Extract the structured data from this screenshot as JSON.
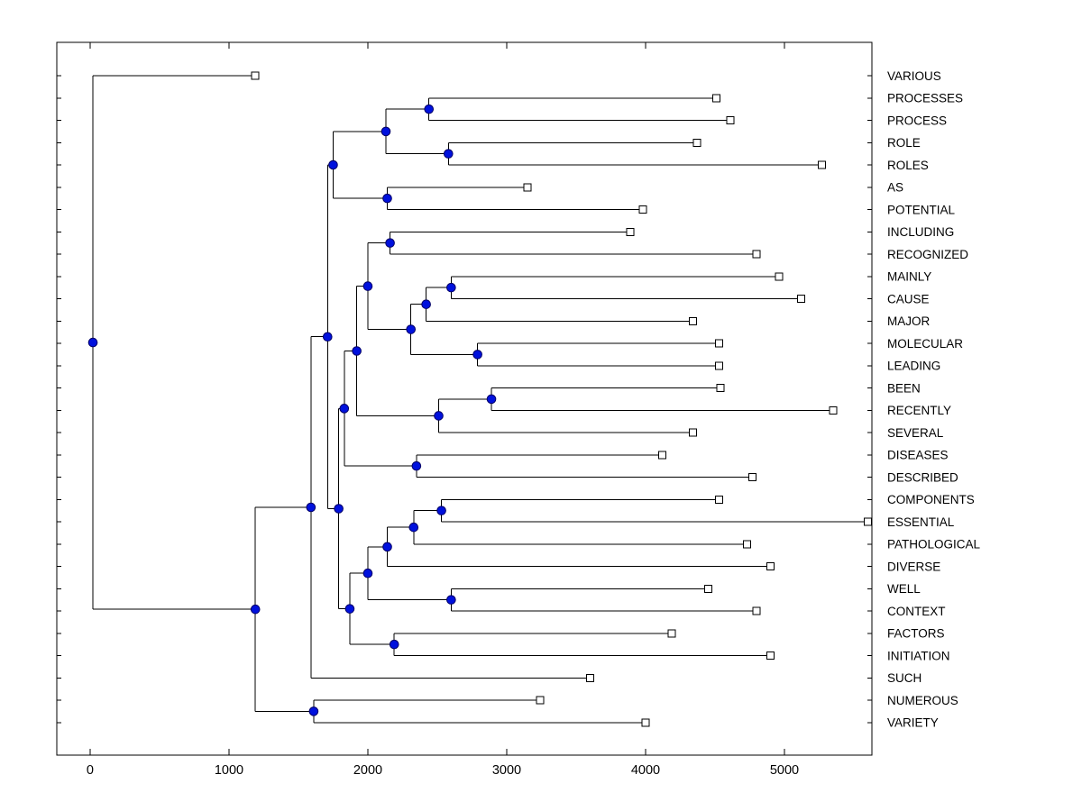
{
  "figure": {
    "background_color": "#ffffff",
    "plot_border_color": "#000000"
  },
  "chart_data": {
    "type": "dendrogram",
    "orientation": "left-to-right",
    "title": "",
    "xlabel": "",
    "ylabel": "",
    "x_ticks": [
      0,
      1000,
      2000,
      3000,
      4000,
      5000
    ],
    "x_tick_labels": [
      "0",
      "1000",
      "2000",
      "3000",
      "4000",
      "5000"
    ],
    "xlim": [
      -240,
      5630
    ],
    "grid": false,
    "legend": false,
    "styles": {
      "line_color": "#000000",
      "node_marker_fill": "#0011dd",
      "node_marker_edge": "#000066",
      "leaf_marker_fill": "#ffffff",
      "leaf_marker_edge": "#000000",
      "label_color": "#000000"
    },
    "leaf_labels": [
      "VARIOUS",
      "PROCESSES",
      "PROCESS",
      "ROLE",
      "ROLES",
      "AS",
      "POTENTIAL",
      "INCLUDING",
      "RECOGNIZED",
      "MAINLY",
      "CAUSE",
      "MAJOR",
      "MOLECULAR",
      "LEADING",
      "BEEN",
      "RECENTLY",
      "SEVERAL",
      "DISEASES",
      "DESCRIBED",
      "COMPONENTS",
      "ESSENTIAL",
      "PATHOLOGICAL",
      "DIVERSE",
      "WELL",
      "CONTEXT",
      "FACTORS",
      "INITIATION",
      "SUCH",
      "NUMEROUS",
      "VARIETY"
    ],
    "tree": {
      "x": 20,
      "children": [
        {
          "label": "VARIOUS",
          "x": 1190
        },
        {
          "x": 1190,
          "children": [
            {
              "x": 1590,
              "children": [
                {
                  "x": 1710,
                  "children": [
                    {
                      "x": 1750,
                      "children": [
                        {
                          "x": 2130,
                          "children": [
                            {
                              "x": 2440,
                              "children": [
                                {
                                  "label": "PROCESSES",
                                  "x": 4510
                                },
                                {
                                  "label": "PROCESS",
                                  "x": 4610
                                }
                              ]
                            },
                            {
                              "x": 2580,
                              "children": [
                                {
                                  "label": "ROLE",
                                  "x": 4370
                                },
                                {
                                  "label": "ROLES",
                                  "x": 5270
                                }
                              ]
                            }
                          ]
                        },
                        {
                          "x": 2140,
                          "children": [
                            {
                              "label": "AS",
                              "x": 3150
                            },
                            {
                              "label": "POTENTIAL",
                              "x": 3980
                            }
                          ]
                        }
                      ]
                    },
                    {
                      "x": 1790,
                      "children": [
                        {
                          "x": 1830,
                          "children": [
                            {
                              "x": 1920,
                              "children": [
                                {
                                  "x": 2000,
                                  "children": [
                                    {
                                      "x": 2160,
                                      "children": [
                                        {
                                          "label": "INCLUDING",
                                          "x": 3890
                                        },
                                        {
                                          "label": "RECOGNIZED",
                                          "x": 4800
                                        }
                                      ]
                                    },
                                    {
                                      "x": 2310,
                                      "children": [
                                        {
                                          "x": 2420,
                                          "children": [
                                            {
                                              "x": 2600,
                                              "children": [
                                                {
                                                  "label": "MAINLY",
                                                  "x": 4960
                                                },
                                                {
                                                  "label": "CAUSE",
                                                  "x": 5120
                                                }
                                              ]
                                            },
                                            {
                                              "label": "MAJOR",
                                              "x": 4340
                                            }
                                          ]
                                        },
                                        {
                                          "x": 2790,
                                          "children": [
                                            {
                                              "label": "MOLECULAR",
                                              "x": 4530
                                            },
                                            {
                                              "label": "LEADING",
                                              "x": 4530
                                            }
                                          ]
                                        }
                                      ]
                                    }
                                  ]
                                },
                                {
                                  "x": 2510,
                                  "children": [
                                    {
                                      "x": 2890,
                                      "children": [
                                        {
                                          "label": "BEEN",
                                          "x": 4540
                                        },
                                        {
                                          "label": "RECENTLY",
                                          "x": 5350
                                        }
                                      ]
                                    },
                                    {
                                      "label": "SEVERAL",
                                      "x": 4340
                                    }
                                  ]
                                }
                              ]
                            },
                            {
                              "x": 2350,
                              "children": [
                                {
                                  "label": "DISEASES",
                                  "x": 4120
                                },
                                {
                                  "label": "DESCRIBED",
                                  "x": 4770
                                }
                              ]
                            }
                          ]
                        },
                        {
                          "x": 1870,
                          "children": [
                            {
                              "x": 2000,
                              "children": [
                                {
                                  "x": 2140,
                                  "children": [
                                    {
                                      "x": 2330,
                                      "children": [
                                        {
                                          "x": 2530,
                                          "children": [
                                            {
                                              "label": "COMPONENTS",
                                              "x": 4530
                                            },
                                            {
                                              "label": "ESSENTIAL",
                                              "x": 5600
                                            }
                                          ]
                                        },
                                        {
                                          "label": "PATHOLOGICAL",
                                          "x": 4730
                                        }
                                      ]
                                    },
                                    {
                                      "label": "DIVERSE",
                                      "x": 4900
                                    }
                                  ]
                                },
                                {
                                  "x": 2600,
                                  "children": [
                                    {
                                      "label": "WELL",
                                      "x": 4450
                                    },
                                    {
                                      "label": "CONTEXT",
                                      "x": 4800
                                    }
                                  ]
                                }
                              ]
                            },
                            {
                              "x": 2190,
                              "children": [
                                {
                                  "label": "FACTORS",
                                  "x": 4190
                                },
                                {
                                  "label": "INITIATION",
                                  "x": 4900
                                }
                              ]
                            }
                          ]
                        }
                      ]
                    }
                  ]
                },
                {
                  "label": "SUCH",
                  "x": 3600
                }
              ]
            },
            {
              "x": 1610,
              "children": [
                {
                  "label": "NUMEROUS",
                  "x": 3240
                },
                {
                  "label": "VARIETY",
                  "x": 4000
                }
              ]
            }
          ]
        }
      ]
    }
  }
}
